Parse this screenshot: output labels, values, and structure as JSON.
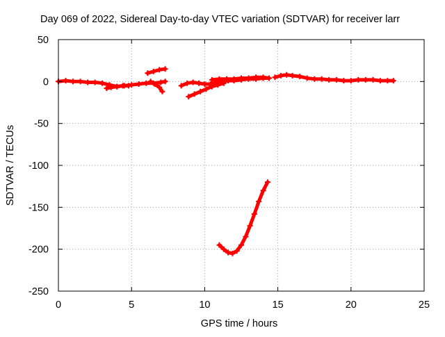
{
  "chart_data": {
    "type": "scatter",
    "title": "Day 069 of 2022, Sidereal Day-to-day VTEC variation (SDTVAR) for receiver larr",
    "xlabel": "GPS time / hours",
    "ylabel": "SDTVAR / TECUs",
    "xlim": [
      0,
      25
    ],
    "ylim": [
      -250,
      50
    ],
    "x_ticks": [
      0,
      5,
      10,
      15,
      20,
      25
    ],
    "y_ticks": [
      -250,
      -200,
      -150,
      -100,
      -50,
      0,
      50
    ],
    "grid": true,
    "legend": "none",
    "marker": "plus",
    "marker_color": "#ff0000",
    "series": [
      {
        "x": [
          0.0,
          0.5,
          1.0,
          1.5,
          2.0,
          2.5,
          3.0,
          3.5,
          4.0,
          4.5,
          5.0,
          5.5,
          6.0,
          6.5,
          7.0,
          7.3
        ],
        "y": [
          0,
          1,
          0,
          0,
          -1,
          -1,
          -2,
          -4,
          -6,
          -5,
          -4,
          -3,
          -2,
          -2,
          -1,
          0
        ]
      },
      {
        "x": [
          3.3,
          3.6,
          4.0,
          4.4,
          4.8
        ],
        "y": [
          -8,
          -7,
          -6,
          -5,
          -5
        ]
      },
      {
        "x": [
          6.1,
          6.5,
          6.9,
          7.3
        ],
        "y": [
          10,
          12,
          14,
          15
        ]
      },
      {
        "x": [
          6.3,
          6.6,
          6.9,
          7.1
        ],
        "y": [
          0,
          -3,
          -7,
          -12
        ]
      },
      {
        "x": [
          8.4,
          8.8,
          9.2,
          9.6,
          10.0,
          10.4,
          10.8,
          11.2,
          11.6,
          12.0,
          12.5,
          13.0,
          13.5,
          14.0,
          14.4
        ],
        "y": [
          -5,
          -2,
          -1,
          -2,
          -3,
          -3,
          -1,
          0,
          1,
          1,
          2,
          3,
          3,
          4,
          4
        ]
      },
      {
        "x": [
          8.9,
          9.3,
          9.7,
          10.1,
          10.5,
          10.9,
          11.3
        ],
        "y": [
          -18,
          -15,
          -12,
          -9,
          -6,
          -4,
          -2
        ]
      },
      {
        "x": [
          10.5,
          11.0,
          11.5,
          12.0,
          12.5,
          13.0,
          13.5,
          14.0,
          14.4
        ],
        "y": [
          2,
          3,
          3,
          3,
          4,
          4,
          5,
          5,
          4
        ]
      },
      {
        "x": [
          14.8,
          15.2,
          15.6,
          16.0,
          16.5,
          17.0,
          17.5,
          18.0,
          18.5,
          19.0,
          19.5,
          20.0,
          20.5,
          21.0,
          21.5,
          22.0,
          22.5,
          22.9
        ],
        "y": [
          5,
          7,
          8,
          7,
          6,
          4,
          3,
          3,
          2,
          2,
          1,
          1,
          2,
          2,
          2,
          1,
          1,
          1
        ]
      },
      {
        "x": [
          11.0,
          11.3,
          11.6,
          11.9,
          12.2,
          12.5,
          12.8,
          13.1,
          13.4,
          13.7,
          14.0,
          14.3
        ],
        "y": [
          -195,
          -200,
          -204,
          -205,
          -202,
          -195,
          -185,
          -172,
          -158,
          -143,
          -130,
          -120
        ]
      }
    ]
  }
}
